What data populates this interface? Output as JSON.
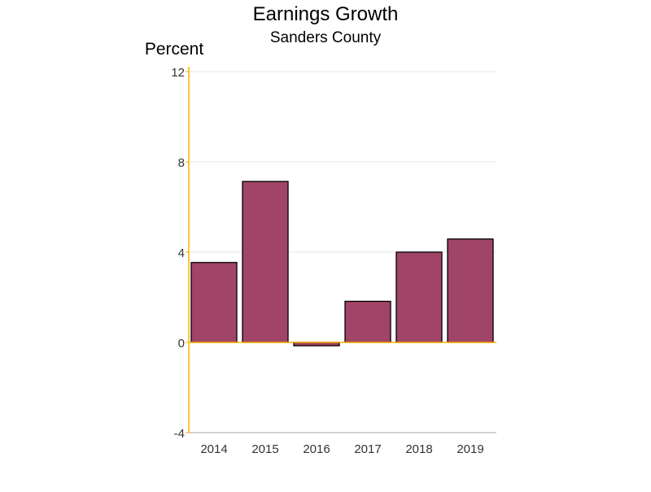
{
  "chart_data": {
    "type": "bar",
    "title": "Earnings Growth",
    "subtitle": "Sanders County",
    "ylabel": "Percent",
    "xlabel": "",
    "categories": [
      "2014",
      "2015",
      "2016",
      "2017",
      "2018",
      "2019"
    ],
    "values": [
      3.54,
      7.13,
      -0.15,
      1.82,
      4.0,
      4.58
    ],
    "ylim": [
      -4,
      12
    ],
    "yticks": [
      -4,
      0,
      4,
      8,
      12
    ],
    "grid": true,
    "legend": "none",
    "colors": {
      "bar": "#A04468",
      "axis": "#FFB000",
      "grid": "#E6E6E6",
      "baseline": "#FFB000"
    }
  }
}
